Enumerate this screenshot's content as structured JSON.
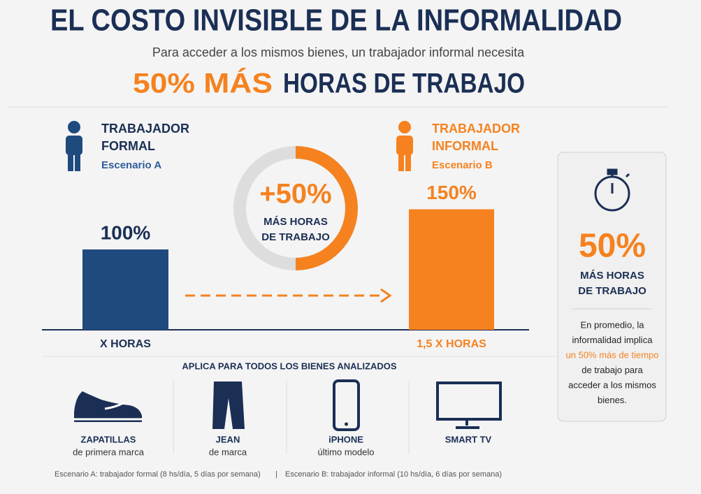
{
  "header": {
    "title": "EL COSTO INVISIBLE DE LA INFORMALIDAD",
    "subtitle": "Para acceder a los mismos bienes, un trabajador informal necesita",
    "highlight": "50% MÁS",
    "headline": "HORAS DE TRABAJO"
  },
  "workers": [
    {
      "title_lines": [
        "TRABAJADOR",
        "FORMAL"
      ],
      "scenario": "Escenario A",
      "bar": {
        "value": 100,
        "label": "100%"
      },
      "hours": "X HORAS",
      "color": "#1f4a7e"
    },
    {
      "title_lines": [
        "TRABAJADOR",
        "INFORMAL"
      ],
      "scenario": "Escenario B",
      "bar": {
        "value": 150,
        "label": "150%"
      },
      "hours": "1,5 X HORAS",
      "color": "#f5821f"
    }
  ],
  "ring": {
    "value": 50,
    "label": "+50%",
    "caption": [
      "MÁS HORAS",
      "DE TRABAJO"
    ]
  },
  "card": {
    "figure": "50%",
    "caption": [
      "MÁS HORAS",
      "DE TRABAJO"
    ],
    "note_before": [
      "En promedio, la",
      "informalidad implica"
    ],
    "note_highlight": "un 50% más de tiempo",
    "note_after": [
      "de trabajo para",
      "acceder a los mismos",
      "bienes."
    ]
  },
  "goods": {
    "heading": "APLICA PARA TODOS LOS BIENES ANALIZADOS",
    "items": [
      {
        "name": "ZAPATILLAS",
        "detail": "de primera marca"
      },
      {
        "name": "JEAN",
        "detail": "de marca"
      },
      {
        "name": "iPHONE",
        "detail": "último modelo"
      },
      {
        "name": "SMART TV"
      }
    ]
  },
  "footer": {
    "scenario_a": "Escenario A: trabajador formal (8 hs/día, 5 días por semana)",
    "separator": "|",
    "scenario_b": "Escenario B: trabajador informal (10 hs/día, 6 días por semana)"
  }
}
